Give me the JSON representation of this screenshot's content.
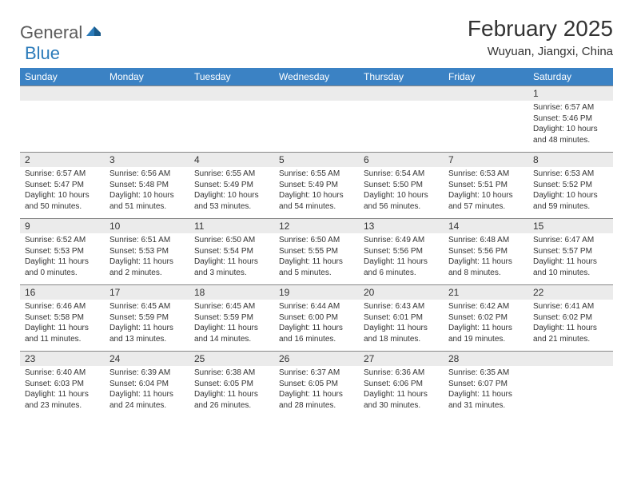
{
  "logo": {
    "text1": "General",
    "text2": "Blue"
  },
  "header": {
    "month_title": "February 2025",
    "location": "Wuyuan, Jiangxi, China"
  },
  "weekdays": [
    "Sunday",
    "Monday",
    "Tuesday",
    "Wednesday",
    "Thursday",
    "Friday",
    "Saturday"
  ],
  "colors": {
    "header_bg": "#3b82c4",
    "header_text": "#ffffff",
    "day_number_bg": "#ebebeb",
    "body_text": "#333333",
    "logo_gray": "#5a5a5a",
    "logo_blue": "#2b7bba",
    "border": "#888888"
  },
  "weeks": [
    [
      {
        "day": "",
        "sunrise": "",
        "sunset": "",
        "daylight": ""
      },
      {
        "day": "",
        "sunrise": "",
        "sunset": "",
        "daylight": ""
      },
      {
        "day": "",
        "sunrise": "",
        "sunset": "",
        "daylight": ""
      },
      {
        "day": "",
        "sunrise": "",
        "sunset": "",
        "daylight": ""
      },
      {
        "day": "",
        "sunrise": "",
        "sunset": "",
        "daylight": ""
      },
      {
        "day": "",
        "sunrise": "",
        "sunset": "",
        "daylight": ""
      },
      {
        "day": "1",
        "sunrise": "Sunrise: 6:57 AM",
        "sunset": "Sunset: 5:46 PM",
        "daylight": "Daylight: 10 hours and 48 minutes."
      }
    ],
    [
      {
        "day": "2",
        "sunrise": "Sunrise: 6:57 AM",
        "sunset": "Sunset: 5:47 PM",
        "daylight": "Daylight: 10 hours and 50 minutes."
      },
      {
        "day": "3",
        "sunrise": "Sunrise: 6:56 AM",
        "sunset": "Sunset: 5:48 PM",
        "daylight": "Daylight: 10 hours and 51 minutes."
      },
      {
        "day": "4",
        "sunrise": "Sunrise: 6:55 AM",
        "sunset": "Sunset: 5:49 PM",
        "daylight": "Daylight: 10 hours and 53 minutes."
      },
      {
        "day": "5",
        "sunrise": "Sunrise: 6:55 AM",
        "sunset": "Sunset: 5:49 PM",
        "daylight": "Daylight: 10 hours and 54 minutes."
      },
      {
        "day": "6",
        "sunrise": "Sunrise: 6:54 AM",
        "sunset": "Sunset: 5:50 PM",
        "daylight": "Daylight: 10 hours and 56 minutes."
      },
      {
        "day": "7",
        "sunrise": "Sunrise: 6:53 AM",
        "sunset": "Sunset: 5:51 PM",
        "daylight": "Daylight: 10 hours and 57 minutes."
      },
      {
        "day": "8",
        "sunrise": "Sunrise: 6:53 AM",
        "sunset": "Sunset: 5:52 PM",
        "daylight": "Daylight: 10 hours and 59 minutes."
      }
    ],
    [
      {
        "day": "9",
        "sunrise": "Sunrise: 6:52 AM",
        "sunset": "Sunset: 5:53 PM",
        "daylight": "Daylight: 11 hours and 0 minutes."
      },
      {
        "day": "10",
        "sunrise": "Sunrise: 6:51 AM",
        "sunset": "Sunset: 5:53 PM",
        "daylight": "Daylight: 11 hours and 2 minutes."
      },
      {
        "day": "11",
        "sunrise": "Sunrise: 6:50 AM",
        "sunset": "Sunset: 5:54 PM",
        "daylight": "Daylight: 11 hours and 3 minutes."
      },
      {
        "day": "12",
        "sunrise": "Sunrise: 6:50 AM",
        "sunset": "Sunset: 5:55 PM",
        "daylight": "Daylight: 11 hours and 5 minutes."
      },
      {
        "day": "13",
        "sunrise": "Sunrise: 6:49 AM",
        "sunset": "Sunset: 5:56 PM",
        "daylight": "Daylight: 11 hours and 6 minutes."
      },
      {
        "day": "14",
        "sunrise": "Sunrise: 6:48 AM",
        "sunset": "Sunset: 5:56 PM",
        "daylight": "Daylight: 11 hours and 8 minutes."
      },
      {
        "day": "15",
        "sunrise": "Sunrise: 6:47 AM",
        "sunset": "Sunset: 5:57 PM",
        "daylight": "Daylight: 11 hours and 10 minutes."
      }
    ],
    [
      {
        "day": "16",
        "sunrise": "Sunrise: 6:46 AM",
        "sunset": "Sunset: 5:58 PM",
        "daylight": "Daylight: 11 hours and 11 minutes."
      },
      {
        "day": "17",
        "sunrise": "Sunrise: 6:45 AM",
        "sunset": "Sunset: 5:59 PM",
        "daylight": "Daylight: 11 hours and 13 minutes."
      },
      {
        "day": "18",
        "sunrise": "Sunrise: 6:45 AM",
        "sunset": "Sunset: 5:59 PM",
        "daylight": "Daylight: 11 hours and 14 minutes."
      },
      {
        "day": "19",
        "sunrise": "Sunrise: 6:44 AM",
        "sunset": "Sunset: 6:00 PM",
        "daylight": "Daylight: 11 hours and 16 minutes."
      },
      {
        "day": "20",
        "sunrise": "Sunrise: 6:43 AM",
        "sunset": "Sunset: 6:01 PM",
        "daylight": "Daylight: 11 hours and 18 minutes."
      },
      {
        "day": "21",
        "sunrise": "Sunrise: 6:42 AM",
        "sunset": "Sunset: 6:02 PM",
        "daylight": "Daylight: 11 hours and 19 minutes."
      },
      {
        "day": "22",
        "sunrise": "Sunrise: 6:41 AM",
        "sunset": "Sunset: 6:02 PM",
        "daylight": "Daylight: 11 hours and 21 minutes."
      }
    ],
    [
      {
        "day": "23",
        "sunrise": "Sunrise: 6:40 AM",
        "sunset": "Sunset: 6:03 PM",
        "daylight": "Daylight: 11 hours and 23 minutes."
      },
      {
        "day": "24",
        "sunrise": "Sunrise: 6:39 AM",
        "sunset": "Sunset: 6:04 PM",
        "daylight": "Daylight: 11 hours and 24 minutes."
      },
      {
        "day": "25",
        "sunrise": "Sunrise: 6:38 AM",
        "sunset": "Sunset: 6:05 PM",
        "daylight": "Daylight: 11 hours and 26 minutes."
      },
      {
        "day": "26",
        "sunrise": "Sunrise: 6:37 AM",
        "sunset": "Sunset: 6:05 PM",
        "daylight": "Daylight: 11 hours and 28 minutes."
      },
      {
        "day": "27",
        "sunrise": "Sunrise: 6:36 AM",
        "sunset": "Sunset: 6:06 PM",
        "daylight": "Daylight: 11 hours and 30 minutes."
      },
      {
        "day": "28",
        "sunrise": "Sunrise: 6:35 AM",
        "sunset": "Sunset: 6:07 PM",
        "daylight": "Daylight: 11 hours and 31 minutes."
      },
      {
        "day": "",
        "sunrise": "",
        "sunset": "",
        "daylight": ""
      }
    ]
  ]
}
